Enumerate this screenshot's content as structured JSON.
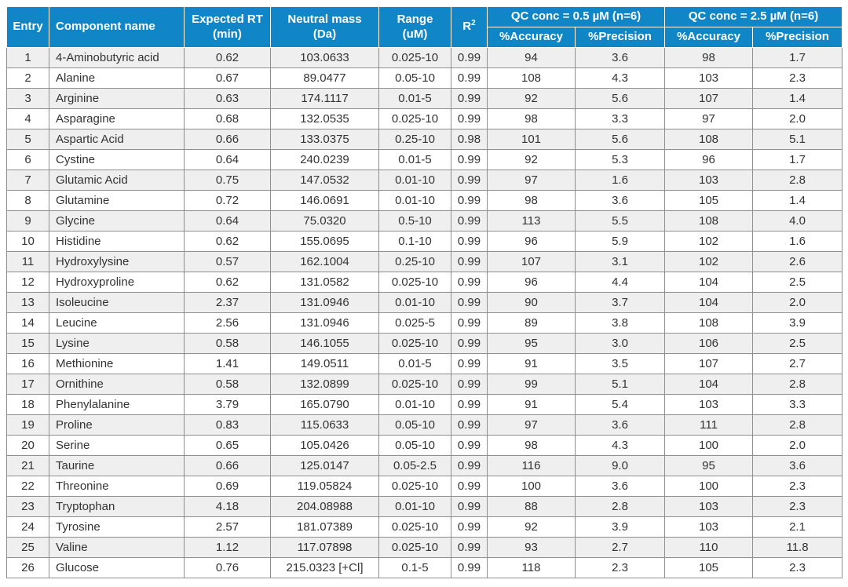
{
  "colors": {
    "header_bg": "#1186C6",
    "header_text": "#FFFFFF",
    "row_stripe": "#EFEFEF",
    "row_plain": "#FFFFFF",
    "cell_border": "#8F8F8F",
    "body_text": "#333333"
  },
  "table": {
    "headers": {
      "entry": "Entry",
      "component": "Component name",
      "expected_rt": [
        "Expected RT",
        "(min)"
      ],
      "neutral_mass": [
        "Neutral mass",
        "(Da)"
      ],
      "range": [
        "Range",
        "(uM)"
      ],
      "r2_base": "R",
      "r2_sup": "2",
      "qc05": "QC conc = 0.5 µM (n=6)",
      "qc25": "QC conc = 2.5 µM (n=6)",
      "accuracy": "%Accuracy",
      "precision": "%Precision"
    },
    "rows": [
      [
        "1",
        "4-Aminobutyric acid",
        "0.62",
        "103.0633",
        "0.025-10",
        "0.99",
        "94",
        "3.6",
        "98",
        "1.7"
      ],
      [
        "2",
        "Alanine",
        "0.67",
        "89.0477",
        "0.05-10",
        "0.99",
        "108",
        "4.3",
        "103",
        "2.3"
      ],
      [
        "3",
        "Arginine",
        "0.63",
        "174.1117",
        "0.01-5",
        "0.99",
        "92",
        "5.6",
        "107",
        "1.4"
      ],
      [
        "4",
        "Asparagine",
        "0.68",
        "132.0535",
        "0.025-10",
        "0.99",
        "98",
        "3.3",
        "97",
        "2.0"
      ],
      [
        "5",
        "Aspartic Acid",
        "0.66",
        "133.0375",
        "0.25-10",
        "0.98",
        "101",
        "5.6",
        "108",
        "5.1"
      ],
      [
        "6",
        "Cystine",
        "0.64",
        "240.0239",
        "0.01-5",
        "0.99",
        "92",
        "5.3",
        "96",
        "1.7"
      ],
      [
        "7",
        "Glutamic Acid",
        "0.75",
        "147.0532",
        "0.01-10",
        "0.99",
        "97",
        "1.6",
        "103",
        "2.8"
      ],
      [
        "8",
        "Glutamine",
        "0.72",
        "146.0691",
        "0.01-10",
        "0.99",
        "98",
        "3.6",
        "105",
        "1.4"
      ],
      [
        "9",
        "Glycine",
        "0.64",
        "75.0320",
        "0.5-10",
        "0.99",
        "113",
        "5.5",
        "108",
        "4.0"
      ],
      [
        "10",
        "Histidine",
        "0.62",
        "155.0695",
        "0.1-10",
        "0.99",
        "96",
        "5.9",
        "102",
        "1.6"
      ],
      [
        "11",
        "Hydroxylysine",
        "0.57",
        "162.1004",
        "0.25-10",
        "0.99",
        "107",
        "3.1",
        "102",
        "2.6"
      ],
      [
        "12",
        "Hydroxyproline",
        "0.62",
        "131.0582",
        "0.025-10",
        "0.99",
        "96",
        "4.4",
        "104",
        "2.5"
      ],
      [
        "13",
        "Isoleucine",
        "2.37",
        "131.0946",
        "0.01-10",
        "0.99",
        "90",
        "3.7",
        "104",
        "2.0"
      ],
      [
        "14",
        "Leucine",
        "2.56",
        "131.0946",
        "0.025-5",
        "0.99",
        "89",
        "3.8",
        "108",
        "3.9"
      ],
      [
        "15",
        "Lysine",
        "0.58",
        "146.1055",
        "0.025-10",
        "0.99",
        "95",
        "3.0",
        "106",
        "2.5"
      ],
      [
        "16",
        "Methionine",
        "1.41",
        "149.0511",
        "0.01-5",
        "0.99",
        "91",
        "3.5",
        "107",
        "2.7"
      ],
      [
        "17",
        "Ornithine",
        "0.58",
        "132.0899",
        "0.025-10",
        "0.99",
        "99",
        "5.1",
        "104",
        "2.8"
      ],
      [
        "18",
        "Phenylalanine",
        "3.79",
        "165.0790",
        "0.01-10",
        "0.99",
        "91",
        "5.4",
        "103",
        "3.3"
      ],
      [
        "19",
        "Proline",
        "0.83",
        "115.0633",
        "0.05-10",
        "0.99",
        "97",
        "3.6",
        "111",
        "2.8"
      ],
      [
        "20",
        "Serine",
        "0.65",
        "105.0426",
        "0.05-10",
        "0.99",
        "98",
        "4.3",
        "100",
        "2.0"
      ],
      [
        "21",
        "Taurine",
        "0.66",
        "125.0147",
        "0.05-2.5",
        "0.99",
        "116",
        "9.0",
        "95",
        "3.6"
      ],
      [
        "22",
        "Threonine",
        "0.69",
        "119.05824",
        "0.025-10",
        "0.99",
        "100",
        "3.6",
        "100",
        "2.3"
      ],
      [
        "23",
        "Tryptophan",
        "4.18",
        "204.08988",
        "0.01-10",
        "0.99",
        "88",
        "2.8",
        "103",
        "2.3"
      ],
      [
        "24",
        "Tyrosine",
        "2.57",
        "181.07389",
        "0.025-10",
        "0.99",
        "92",
        "3.9",
        "103",
        "2.1"
      ],
      [
        "25",
        "Valine",
        "1.12",
        "117.07898",
        "0.025-10",
        "0.99",
        "93",
        "2.7",
        "110",
        "11.8"
      ],
      [
        "26",
        "Glucose",
        "0.76",
        "215.0323 [+Cl]",
        "0.1-5",
        "0.99",
        "118",
        "2.3",
        "105",
        "2.3"
      ]
    ]
  }
}
